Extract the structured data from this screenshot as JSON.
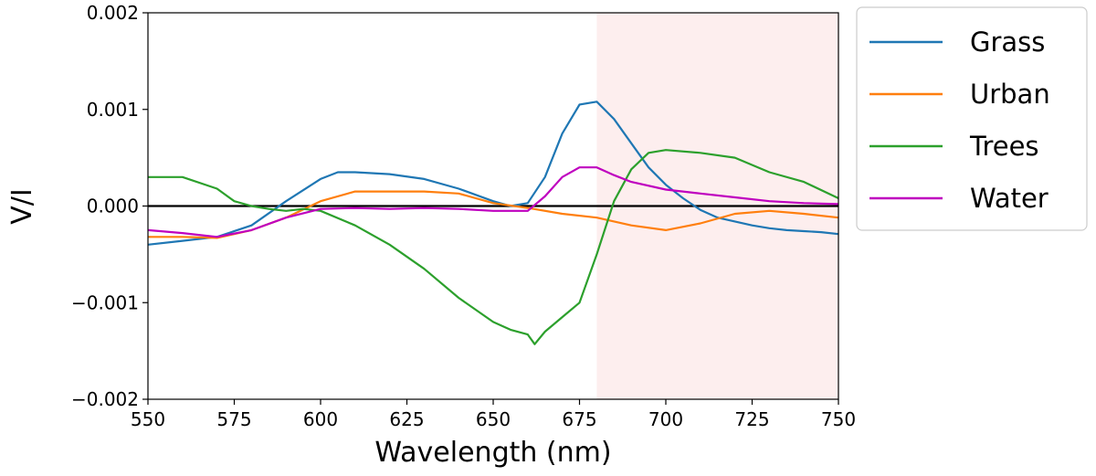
{
  "chart_data": {
    "type": "line",
    "title": "",
    "xlabel": "Wavelength (nm)",
    "ylabel": "V/I",
    "xlim": [
      550,
      750
    ],
    "ylim": [
      -0.002,
      0.002
    ],
    "x_ticks": [
      550,
      575,
      600,
      625,
      650,
      675,
      700,
      725,
      750
    ],
    "x_tick_labels": [
      "550",
      "575",
      "600",
      "625",
      "650",
      "675",
      "700",
      "725",
      "750"
    ],
    "y_ticks": [
      -0.002,
      -0.001,
      0.0,
      0.001,
      0.002
    ],
    "y_tick_labels": [
      "−0.002",
      "−0.001",
      "0.000",
      "0.001",
      "0.002"
    ],
    "grid": false,
    "legend_position": "outside-top-right",
    "zero_line": 0.0,
    "shaded_region": {
      "x_start": 680,
      "x_end": 750,
      "color": "#fdeeee"
    },
    "series": [
      {
        "name": "Grass",
        "color": "#1f77b4",
        "x": [
          550,
          560,
          570,
          580,
          590,
          600,
          605,
          610,
          620,
          630,
          640,
          650,
          655,
          660,
          665,
          670,
          675,
          680,
          685,
          690,
          695,
          700,
          705,
          710,
          715,
          720,
          725,
          730,
          735,
          740,
          745,
          750
        ],
        "y": [
          -0.0004,
          -0.00036,
          -0.00032,
          -0.0002,
          5e-05,
          0.00028,
          0.00035,
          0.00035,
          0.00033,
          0.00028,
          0.00018,
          5e-05,
          0.0,
          3e-05,
          0.0003,
          0.00075,
          0.00105,
          0.00108,
          0.0009,
          0.00065,
          0.0004,
          0.00022,
          8e-05,
          -4e-05,
          -0.00012,
          -0.00016,
          -0.0002,
          -0.00023,
          -0.00025,
          -0.00026,
          -0.00027,
          -0.00029
        ]
      },
      {
        "name": "Urban",
        "color": "#ff7f0e",
        "x": [
          550,
          560,
          570,
          580,
          590,
          600,
          610,
          620,
          630,
          640,
          650,
          660,
          670,
          680,
          690,
          700,
          710,
          720,
          730,
          740,
          750
        ],
        "y": [
          -0.00032,
          -0.00032,
          -0.00033,
          -0.00025,
          -0.00012,
          5e-05,
          0.00015,
          0.00015,
          0.00015,
          0.00013,
          3e-05,
          -2e-05,
          -8e-05,
          -0.00012,
          -0.0002,
          -0.00025,
          -0.00018,
          -8e-05,
          -5e-05,
          -8e-05,
          -0.00012
        ]
      },
      {
        "name": "Trees",
        "color": "#2ca02c",
        "x": [
          550,
          560,
          570,
          575,
          580,
          585,
          590,
          595,
          600,
          610,
          620,
          630,
          640,
          650,
          655,
          660,
          662,
          665,
          670,
          675,
          680,
          685,
          690,
          695,
          700,
          710,
          720,
          730,
          740,
          750
        ],
        "y": [
          0.0003,
          0.0003,
          0.00018,
          5e-05,
          0.0,
          -3e-05,
          -5e-05,
          -3e-05,
          -5e-05,
          -0.0002,
          -0.0004,
          -0.00065,
          -0.00095,
          -0.0012,
          -0.00128,
          -0.00133,
          -0.00143,
          -0.0013,
          -0.00115,
          -0.001,
          -0.0005,
          5e-05,
          0.00038,
          0.00055,
          0.00058,
          0.00055,
          0.0005,
          0.00035,
          0.00025,
          8e-05
        ]
      },
      {
        "name": "Water",
        "color": "#bf00bf",
        "x": [
          550,
          560,
          570,
          580,
          590,
          600,
          610,
          620,
          630,
          640,
          650,
          660,
          665,
          670,
          675,
          680,
          685,
          690,
          700,
          710,
          720,
          730,
          740,
          750
        ],
        "y": [
          -0.00025,
          -0.00028,
          -0.00032,
          -0.00025,
          -0.00012,
          -3e-05,
          -2e-05,
          -3e-05,
          -2e-05,
          -3e-05,
          -5e-05,
          -5e-05,
          0.0001,
          0.0003,
          0.0004,
          0.0004,
          0.00032,
          0.00025,
          0.00017,
          0.00013,
          9e-05,
          5e-05,
          3e-05,
          2e-05
        ]
      }
    ]
  }
}
